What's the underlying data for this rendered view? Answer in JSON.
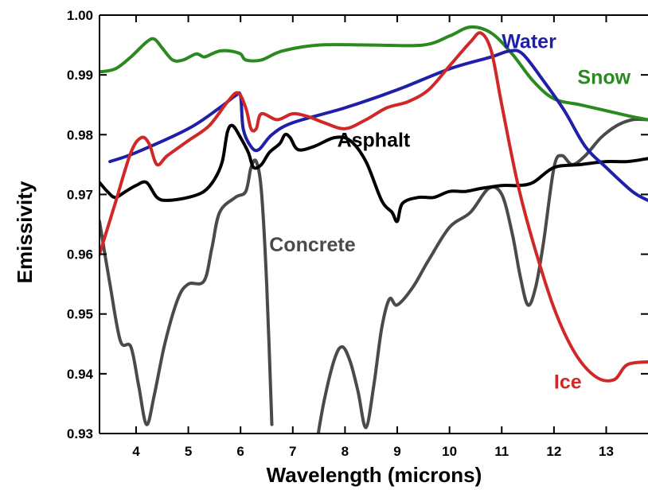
{
  "chart_data": {
    "type": "line",
    "xlabel": "Wavelength (microns)",
    "ylabel": "Emissivity",
    "xlim": [
      3.3,
      13.8
    ],
    "ylim": [
      0.93,
      1.0
    ],
    "xticks": [
      4,
      5,
      6,
      7,
      8,
      9,
      10,
      11,
      12,
      13
    ],
    "yticks": [
      0.93,
      0.94,
      0.95,
      0.96,
      0.97,
      0.98,
      0.99,
      1.0
    ],
    "ytick_labels": [
      "0.93",
      "0.94",
      "0.95",
      "0.96",
      "0.97",
      "0.98",
      "0.99",
      "1.00"
    ],
    "grid": false,
    "series": [
      {
        "name": "Snow",
        "color": "#2a8a1f",
        "label_at": [
          12.45,
          0.9885
        ],
        "points": [
          [
            3.3,
            0.9905
          ],
          [
            3.6,
            0.991
          ],
          [
            3.9,
            0.993
          ],
          [
            4.2,
            0.9955
          ],
          [
            4.35,
            0.996
          ],
          [
            4.5,
            0.9945
          ],
          [
            4.7,
            0.9925
          ],
          [
            4.9,
            0.9925
          ],
          [
            5.15,
            0.9935
          ],
          [
            5.3,
            0.993
          ],
          [
            5.45,
            0.9935
          ],
          [
            5.6,
            0.994
          ],
          [
            5.8,
            0.994
          ],
          [
            6.0,
            0.9935
          ],
          [
            6.1,
            0.9925
          ],
          [
            6.4,
            0.9925
          ],
          [
            6.8,
            0.994
          ],
          [
            7.5,
            0.995
          ],
          [
            8.5,
            0.995
          ],
          [
            9.5,
            0.995
          ],
          [
            10.0,
            0.9965
          ],
          [
            10.4,
            0.998
          ],
          [
            10.8,
            0.997
          ],
          [
            11.2,
            0.9935
          ],
          [
            11.6,
            0.989
          ],
          [
            12.0,
            0.986
          ],
          [
            12.5,
            0.985
          ],
          [
            13.0,
            0.984
          ],
          [
            13.5,
            0.983
          ],
          [
            13.8,
            0.9825
          ]
        ]
      },
      {
        "name": "Water",
        "color": "#1f1fa8",
        "label_at": [
          11.0,
          0.9945
        ],
        "points": [
          [
            3.5,
            0.9755
          ],
          [
            4.0,
            0.977
          ],
          [
            5.0,
            0.981
          ],
          [
            5.6,
            0.9845
          ],
          [
            5.9,
            0.9865
          ],
          [
            6.0,
            0.9865
          ],
          [
            6.05,
            0.981
          ],
          [
            6.2,
            0.978
          ],
          [
            6.35,
            0.9775
          ],
          [
            6.6,
            0.98
          ],
          [
            7.0,
            0.982
          ],
          [
            8.0,
            0.9845
          ],
          [
            9.0,
            0.9875
          ],
          [
            10.0,
            0.991
          ],
          [
            10.8,
            0.993
          ],
          [
            11.15,
            0.994
          ],
          [
            11.4,
            0.9935
          ],
          [
            11.8,
            0.989
          ],
          [
            12.2,
            0.984
          ],
          [
            12.6,
            0.978
          ],
          [
            13.0,
            0.9745
          ],
          [
            13.5,
            0.9705
          ],
          [
            13.8,
            0.969
          ]
        ]
      },
      {
        "name": "Ice",
        "color": "#d02828",
        "label_at": [
          12.0,
          0.9375
        ],
        "points": [
          [
            3.3,
            0.96
          ],
          [
            3.6,
            0.9685
          ],
          [
            3.9,
            0.977
          ],
          [
            4.1,
            0.9795
          ],
          [
            4.25,
            0.9785
          ],
          [
            4.4,
            0.975
          ],
          [
            4.6,
            0.9765
          ],
          [
            5.0,
            0.979
          ],
          [
            5.4,
            0.9815
          ],
          [
            5.75,
            0.9855
          ],
          [
            5.95,
            0.987
          ],
          [
            6.1,
            0.9845
          ],
          [
            6.2,
            0.981
          ],
          [
            6.3,
            0.981
          ],
          [
            6.4,
            0.9835
          ],
          [
            6.7,
            0.9825
          ],
          [
            7.0,
            0.9835
          ],
          [
            7.3,
            0.983
          ],
          [
            7.6,
            0.982
          ],
          [
            8.0,
            0.981
          ],
          [
            8.4,
            0.9825
          ],
          [
            8.8,
            0.9845
          ],
          [
            9.2,
            0.9855
          ],
          [
            9.6,
            0.9875
          ],
          [
            10.0,
            0.9915
          ],
          [
            10.4,
            0.9955
          ],
          [
            10.6,
            0.997
          ],
          [
            10.8,
            0.994
          ],
          [
            11.0,
            0.985
          ],
          [
            11.3,
            0.972
          ],
          [
            11.6,
            0.962
          ],
          [
            12.0,
            0.951
          ],
          [
            12.4,
            0.9435
          ],
          [
            12.8,
            0.9395
          ],
          [
            13.15,
            0.939
          ],
          [
            13.4,
            0.9415
          ],
          [
            13.8,
            0.942
          ]
        ]
      },
      {
        "name": "Asphalt",
        "color": "#000000",
        "label_at": [
          7.85,
          0.978
        ],
        "points": [
          [
            3.3,
            0.972
          ],
          [
            3.45,
            0.9705
          ],
          [
            3.6,
            0.9695
          ],
          [
            3.8,
            0.9705
          ],
          [
            4.0,
            0.9715
          ],
          [
            4.2,
            0.972
          ],
          [
            4.4,
            0.9695
          ],
          [
            4.6,
            0.969
          ],
          [
            5.0,
            0.9695
          ],
          [
            5.3,
            0.9705
          ],
          [
            5.5,
            0.9725
          ],
          [
            5.65,
            0.9755
          ],
          [
            5.75,
            0.9805
          ],
          [
            5.85,
            0.9815
          ],
          [
            6.0,
            0.9795
          ],
          [
            6.15,
            0.977
          ],
          [
            6.25,
            0.9745
          ],
          [
            6.4,
            0.975
          ],
          [
            6.55,
            0.977
          ],
          [
            6.75,
            0.9785
          ],
          [
            6.85,
            0.98
          ],
          [
            6.95,
            0.9795
          ],
          [
            7.1,
            0.9775
          ],
          [
            7.4,
            0.978
          ],
          [
            7.8,
            0.9795
          ],
          [
            8.1,
            0.979
          ],
          [
            8.4,
            0.9755
          ],
          [
            8.7,
            0.969
          ],
          [
            8.9,
            0.967
          ],
          [
            9.0,
            0.9655
          ],
          [
            9.1,
            0.9685
          ],
          [
            9.4,
            0.9695
          ],
          [
            9.7,
            0.9695
          ],
          [
            10.0,
            0.9705
          ],
          [
            10.3,
            0.9705
          ],
          [
            10.6,
            0.971
          ],
          [
            11.0,
            0.9715
          ],
          [
            11.3,
            0.9715
          ],
          [
            11.6,
            0.972
          ],
          [
            12.0,
            0.9745
          ],
          [
            12.5,
            0.975
          ],
          [
            13.0,
            0.9755
          ],
          [
            13.4,
            0.9755
          ],
          [
            13.8,
            0.976
          ]
        ]
      },
      {
        "name": "Concrete",
        "color": "#4a4a4a",
        "label_at": [
          6.55,
          0.9605
        ],
        "segments": [
          [
            [
              3.3,
              0.9655
            ],
            [
              3.5,
              0.955
            ],
            [
              3.7,
              0.9455
            ],
            [
              3.9,
              0.9445
            ],
            [
              4.05,
              0.938
            ],
            [
              4.2,
              0.9315
            ],
            [
              4.35,
              0.9365
            ],
            [
              4.55,
              0.945
            ],
            [
              4.8,
              0.9525
            ],
            [
              5.0,
              0.955
            ],
            [
              5.3,
              0.9555
            ],
            [
              5.45,
              0.961
            ],
            [
              5.6,
              0.967
            ],
            [
              5.9,
              0.9695
            ],
            [
              6.1,
              0.9705
            ],
            [
              6.2,
              0.9745
            ],
            [
              6.3,
              0.9755
            ],
            [
              6.4,
              0.9705
            ],
            [
              6.5,
              0.955
            ],
            [
              6.6,
              0.9315
            ]
          ],
          [
            [
              7.45,
              0.928
            ],
            [
              7.6,
              0.9355
            ],
            [
              7.8,
              0.9425
            ],
            [
              7.95,
              0.9445
            ],
            [
              8.1,
              0.942
            ],
            [
              8.25,
              0.937
            ],
            [
              8.4,
              0.931
            ],
            [
              8.55,
              0.938
            ],
            [
              8.7,
              0.9475
            ],
            [
              8.85,
              0.9525
            ],
            [
              9.0,
              0.9515
            ],
            [
              9.3,
              0.9545
            ],
            [
              9.6,
              0.959
            ],
            [
              10.0,
              0.9645
            ],
            [
              10.4,
              0.967
            ],
            [
              10.75,
              0.971
            ],
            [
              11.0,
              0.97
            ],
            [
              11.2,
              0.9635
            ],
            [
              11.35,
              0.9565
            ],
            [
              11.5,
              0.9515
            ],
            [
              11.65,
              0.9545
            ],
            [
              11.8,
              0.962
            ],
            [
              12.0,
              0.9745
            ],
            [
              12.15,
              0.9765
            ],
            [
              12.35,
              0.975
            ],
            [
              12.6,
              0.9765
            ],
            [
              12.9,
              0.9795
            ],
            [
              13.2,
              0.9815
            ],
            [
              13.5,
              0.9825
            ],
            [
              13.8,
              0.9825
            ]
          ]
        ]
      }
    ]
  }
}
